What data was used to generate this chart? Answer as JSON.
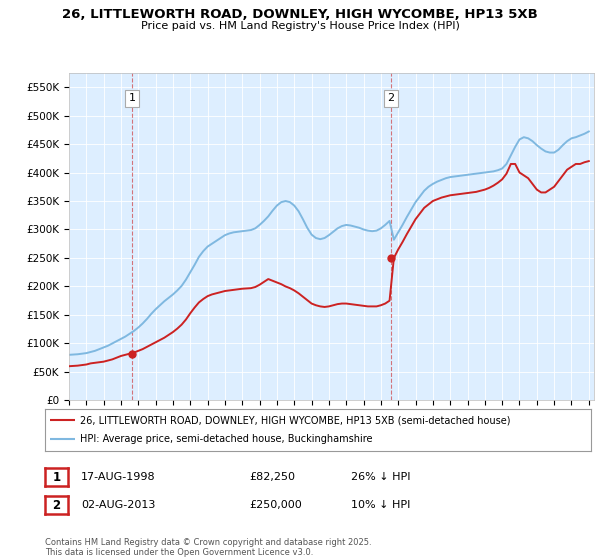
{
  "title": "26, LITTLEWORTH ROAD, DOWNLEY, HIGH WYCOMBE, HP13 5XB",
  "subtitle": "Price paid vs. HM Land Registry's House Price Index (HPI)",
  "ylim": [
    0,
    575000
  ],
  "yticks": [
    0,
    50000,
    100000,
    150000,
    200000,
    250000,
    300000,
    350000,
    400000,
    450000,
    500000,
    550000
  ],
  "ytick_labels": [
    "£0",
    "£50K",
    "£100K",
    "£150K",
    "£200K",
    "£250K",
    "£300K",
    "£350K",
    "£400K",
    "£450K",
    "£500K",
    "£550K"
  ],
  "hpi_color": "#7fb8e0",
  "price_color": "#cc2222",
  "sale1_date": 1998.63,
  "sale1_price": 82250,
  "sale2_date": 2013.58,
  "sale2_price": 250000,
  "legend_property": "26, LITTLEWORTH ROAD, DOWNLEY, HIGH WYCOMBE, HP13 5XB (semi-detached house)",
  "legend_hpi": "HPI: Average price, semi-detached house, Buckinghamshire",
  "table_row1": [
    "1",
    "17-AUG-1998",
    "£82,250",
    "26% ↓ HPI"
  ],
  "table_row2": [
    "2",
    "02-AUG-2013",
    "£250,000",
    "10% ↓ HPI"
  ],
  "footer": "Contains HM Land Registry data © Crown copyright and database right 2025.\nThis data is licensed under the Open Government Licence v3.0.",
  "chart_bg": "#ddeeff",
  "hpi_years": [
    1995.0,
    1995.25,
    1995.5,
    1995.75,
    1996.0,
    1996.25,
    1996.5,
    1996.75,
    1997.0,
    1997.25,
    1997.5,
    1997.75,
    1998.0,
    1998.25,
    1998.5,
    1998.75,
    1999.0,
    1999.25,
    1999.5,
    1999.75,
    2000.0,
    2000.25,
    2000.5,
    2000.75,
    2001.0,
    2001.25,
    2001.5,
    2001.75,
    2002.0,
    2002.25,
    2002.5,
    2002.75,
    2003.0,
    2003.25,
    2003.5,
    2003.75,
    2004.0,
    2004.25,
    2004.5,
    2004.75,
    2005.0,
    2005.25,
    2005.5,
    2005.75,
    2006.0,
    2006.25,
    2006.5,
    2006.75,
    2007.0,
    2007.25,
    2007.5,
    2007.75,
    2008.0,
    2008.25,
    2008.5,
    2008.75,
    2009.0,
    2009.25,
    2009.5,
    2009.75,
    2010.0,
    2010.25,
    2010.5,
    2010.75,
    2011.0,
    2011.25,
    2011.5,
    2011.75,
    2012.0,
    2012.25,
    2012.5,
    2012.75,
    2013.0,
    2013.25,
    2013.5,
    2013.75,
    2014.0,
    2014.25,
    2014.5,
    2014.75,
    2015.0,
    2015.25,
    2015.5,
    2015.75,
    2016.0,
    2016.25,
    2016.5,
    2016.75,
    2017.0,
    2017.25,
    2017.5,
    2017.75,
    2018.0,
    2018.25,
    2018.5,
    2018.75,
    2019.0,
    2019.25,
    2019.5,
    2019.75,
    2020.0,
    2020.25,
    2020.5,
    2020.75,
    2021.0,
    2021.25,
    2021.5,
    2021.75,
    2022.0,
    2022.25,
    2022.5,
    2022.75,
    2023.0,
    2023.25,
    2023.5,
    2023.75,
    2024.0,
    2024.25,
    2024.5,
    2024.75,
    2025.0
  ],
  "hpi_values": [
    80000,
    80500,
    81000,
    82000,
    83000,
    85000,
    87000,
    90000,
    93000,
    96000,
    100000,
    104000,
    108000,
    112000,
    117000,
    122000,
    128000,
    135000,
    143000,
    152000,
    160000,
    167000,
    174000,
    180000,
    186000,
    193000,
    201000,
    212000,
    225000,
    238000,
    252000,
    262000,
    270000,
    275000,
    280000,
    285000,
    290000,
    293000,
    295000,
    296000,
    297000,
    298000,
    299000,
    302000,
    308000,
    315000,
    323000,
    333000,
    342000,
    348000,
    350000,
    348000,
    342000,
    332000,
    318000,
    303000,
    291000,
    285000,
    283000,
    285000,
    290000,
    296000,
    302000,
    306000,
    308000,
    307000,
    305000,
    303000,
    300000,
    298000,
    297000,
    298000,
    302000,
    308000,
    315000,
    282000,
    295000,
    308000,
    322000,
    335000,
    348000,
    358000,
    368000,
    375000,
    380000,
    384000,
    387000,
    390000,
    392000,
    393000,
    394000,
    395000,
    396000,
    397000,
    398000,
    399000,
    400000,
    401000,
    402000,
    404000,
    407000,
    415000,
    430000,
    445000,
    458000,
    462000,
    460000,
    455000,
    448000,
    442000,
    437000,
    435000,
    435000,
    440000,
    448000,
    455000,
    460000,
    462000,
    465000,
    468000,
    472000
  ],
  "price_years": [
    1995.0,
    1995.25,
    1995.5,
    1995.75,
    1996.0,
    1996.25,
    1996.5,
    1996.75,
    1997.0,
    1997.25,
    1997.5,
    1997.75,
    1998.0,
    1998.25,
    1998.5,
    1998.75,
    1999.0,
    1999.25,
    1999.5,
    1999.75,
    2000.0,
    2000.25,
    2000.5,
    2000.75,
    2001.0,
    2001.25,
    2001.5,
    2001.75,
    2002.0,
    2002.25,
    2002.5,
    2002.75,
    2003.0,
    2003.25,
    2003.5,
    2003.75,
    2004.0,
    2004.25,
    2004.5,
    2004.75,
    2005.0,
    2005.25,
    2005.5,
    2005.75,
    2006.0,
    2006.25,
    2006.5,
    2006.75,
    2007.0,
    2007.25,
    2007.5,
    2007.75,
    2008.0,
    2008.25,
    2008.5,
    2008.75,
    2009.0,
    2009.25,
    2009.5,
    2009.75,
    2010.0,
    2010.25,
    2010.5,
    2010.75,
    2011.0,
    2011.25,
    2011.5,
    2011.75,
    2012.0,
    2012.25,
    2012.5,
    2012.75,
    2013.0,
    2013.25,
    2013.5,
    2013.75,
    2014.0,
    2014.25,
    2014.5,
    2014.75,
    2015.0,
    2015.25,
    2015.5,
    2015.75,
    2016.0,
    2016.25,
    2016.5,
    2016.75,
    2017.0,
    2017.25,
    2017.5,
    2017.75,
    2018.0,
    2018.25,
    2018.5,
    2018.75,
    2019.0,
    2019.25,
    2019.5,
    2019.75,
    2020.0,
    2020.25,
    2020.5,
    2020.75,
    2021.0,
    2021.25,
    2021.5,
    2021.75,
    2022.0,
    2022.25,
    2022.5,
    2022.75,
    2023.0,
    2023.25,
    2023.5,
    2023.75,
    2024.0,
    2024.25,
    2024.5,
    2024.75,
    2025.0
  ],
  "price_values": [
    60000,
    60500,
    61000,
    62000,
    63000,
    65000,
    66000,
    67000,
    68000,
    70000,
    72000,
    75000,
    78000,
    80000,
    82000,
    84000,
    87000,
    90000,
    94000,
    98000,
    102000,
    106000,
    110000,
    115000,
    120000,
    126000,
    133000,
    142000,
    153000,
    163000,
    172000,
    178000,
    183000,
    186000,
    188000,
    190000,
    192000,
    193000,
    194000,
    195000,
    196000,
    196500,
    197000,
    199000,
    203000,
    208000,
    213000,
    210000,
    207000,
    204000,
    200000,
    197000,
    193000,
    188000,
    182000,
    176000,
    170000,
    167000,
    165000,
    164000,
    165000,
    167000,
    169000,
    170000,
    170000,
    169000,
    168000,
    167000,
    166000,
    165000,
    165000,
    165000,
    167000,
    170000,
    175000,
    250000,
    265000,
    278000,
    292000,
    305000,
    318000,
    328000,
    338000,
    344000,
    350000,
    353000,
    356000,
    358000,
    360000,
    361000,
    362000,
    363000,
    364000,
    365000,
    366000,
    368000,
    370000,
    373000,
    377000,
    382000,
    388000,
    398000,
    415000,
    415000,
    400000,
    395000,
    390000,
    380000,
    370000,
    365000,
    365000,
    370000,
    375000,
    385000,
    395000,
    405000,
    410000,
    415000,
    415000,
    418000,
    420000
  ]
}
